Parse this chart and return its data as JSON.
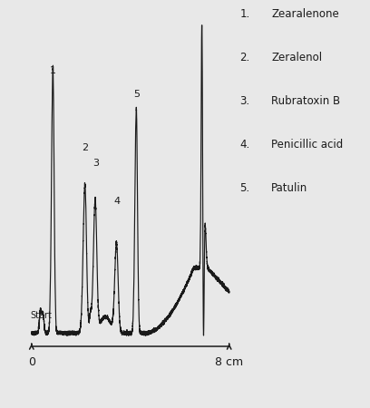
{
  "background_color": "#e8e8e8",
  "plot_bg_color": "#f0f0f0",
  "line_color": "#1a1a1a",
  "legend_items": [
    {
      "number": "1.",
      "name": "Zearalenone"
    },
    {
      "number": "2.",
      "name": "Zeralenol"
    },
    {
      "number": "3.",
      "name": "Rubratoxin B"
    },
    {
      "number": "4.",
      "name": "Penicillic acid"
    },
    {
      "number": "5.",
      "name": "Patulin"
    }
  ],
  "start_label": "Start",
  "peak_labels": [
    {
      "label": "1",
      "xn": 0.108,
      "yn": 0.88
    },
    {
      "label": "2",
      "xn": 0.27,
      "yn": 0.62
    },
    {
      "label": "3",
      "xn": 0.325,
      "yn": 0.57
    },
    {
      "label": "4",
      "xn": 0.43,
      "yn": 0.44
    },
    {
      "label": "5",
      "xn": 0.53,
      "yn": 0.8
    }
  ],
  "scale_zero": "0",
  "scale_end": "8 cm",
  "arrow_color": "#111111"
}
